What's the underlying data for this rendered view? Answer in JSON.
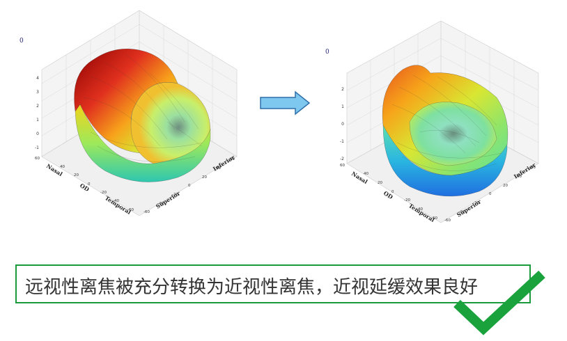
{
  "left_plot": {
    "zero_label": "0",
    "z_ticks": [
      "4",
      "3",
      "2",
      "1",
      "0",
      "-1"
    ],
    "x_axis_label": "Nasal",
    "x_ticks": [
      "60",
      "40"
    ],
    "y_axis_label": "OD",
    "y_ticks": [
      "20",
      "0",
      "-20",
      "-40",
      "-60"
    ],
    "temporal_label": "Temporal",
    "superior_label": "Superior",
    "inferior_label": "Inferior",
    "right_ticks": [
      "-60",
      "-40",
      "-20",
      "0",
      "20",
      "40",
      "60"
    ]
  },
  "right_plot": {
    "zero_label": "0",
    "z_ticks": [
      "2",
      "1",
      "0",
      "-1",
      "-2"
    ],
    "x_axis_label": "Nasal",
    "x_ticks": [
      "60",
      "40"
    ],
    "y_axis_label": "OD",
    "y_ticks": [
      "20",
      "0",
      "-20",
      "-40",
      "-60"
    ],
    "temporal_label": "Temporal",
    "superior_label": "Superior",
    "inferior_label": "Inferior",
    "right_ticks": [
      "-60",
      "-40",
      "-20",
      "0",
      "20",
      "40",
      "60"
    ]
  },
  "arrow_icon": "right-arrow-icon",
  "caption": "远视性离焦被充分转换为近视性离焦，近视延缓效果良好",
  "check_icon": "checkmark-icon",
  "colors": {
    "box_border": "#1a9a3c",
    "check": "#1aa33c",
    "arrow_fill": "#7ec8f0",
    "arrow_stroke": "#2f6ea8"
  }
}
